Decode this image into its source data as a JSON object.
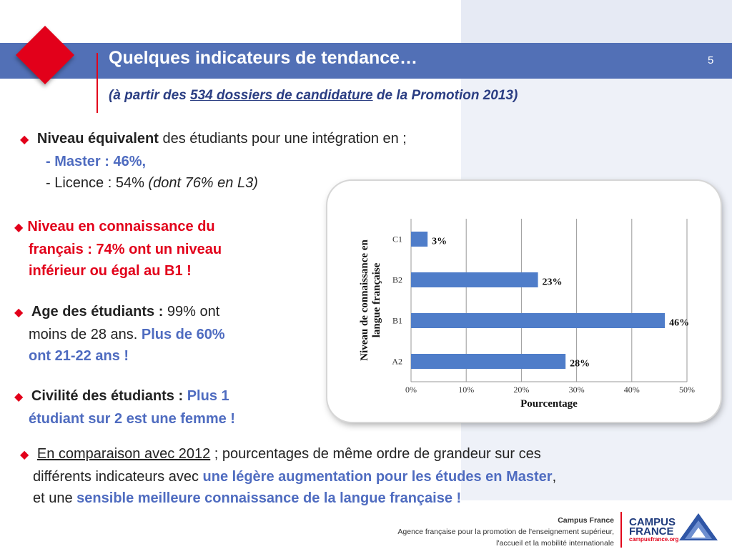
{
  "header": {
    "title": "Quelques indicateurs de tendance…",
    "page_number": "5",
    "subtitle_pre": "(à partir des ",
    "subtitle_link": "534 dossiers de candidature",
    "subtitle_post": " de la Promotion 2013)"
  },
  "bullets": {
    "b1_bold": "Niveau équivalent",
    "b1_rest": " des étudiants pour une intégration en ;",
    "b1_master": "- Master : 46%,",
    "b1_licence": "- Licence : 54% ",
    "b1_licence_it": "(dont 76% en L3)",
    "b2_line1": "Niveau en connaissance du",
    "b2_line2": "français : 74% ont un niveau",
    "b2_line3": "inférieur ou égal au B1 !",
    "b3_bold": "Age des étudiants : ",
    "b3_rest1": "99% ont",
    "b3_rest2": "moins de 28 ans. ",
    "b3_blue1": "Plus  de 60%",
    "b3_blue2": "ont 21-22 ans !",
    "b4_bold": "Civilité des étudiants : ",
    "b4_blue1": "Plus 1",
    "b4_blue2": "étudiant sur 2 est une femme !",
    "b5_u": "En comparaison avec 2012",
    "b5_rest": " ; pourcentages de même ordre de grandeur sur ces",
    "b5_line2a": "différents indicateurs avec ",
    "b5_line2b": "une légère augmentation pour les études en Master",
    "b5_line2c": ",",
    "b5_line3a": "et une ",
    "b5_line3b": "sensible meilleure connaissance de la langue française !"
  },
  "footer": {
    "org": "Campus France",
    "line1": "Agence française pour la promotion de l'enseignement supérieur,",
    "line2": "l'accueil et la mobilité internationale",
    "logo1": "CAMPUS",
    "logo2": "FRANCE",
    "logo_url": "campusfrance.org"
  },
  "colors": {
    "accent_red": "#e2001a",
    "title_bar": "#5270b6",
    "bar": "#4f7dc9",
    "blue_text": "#4f6cc0"
  },
  "chart_data": {
    "type": "bar",
    "orientation": "horizontal",
    "categories": [
      "C1",
      "B2",
      "B1",
      "A2"
    ],
    "values": [
      3,
      23,
      46,
      28
    ],
    "data_labels": [
      "3%",
      "23%",
      "46%",
      "28%"
    ],
    "xlabel": "Pourcentage",
    "ylabel": "Niveau de connaissance en langue française",
    "xlim": [
      0,
      50
    ],
    "xticks": [
      "0%",
      "10%",
      "20%",
      "30%",
      "40%",
      "50%"
    ],
    "grid": true,
    "legend": "none"
  }
}
